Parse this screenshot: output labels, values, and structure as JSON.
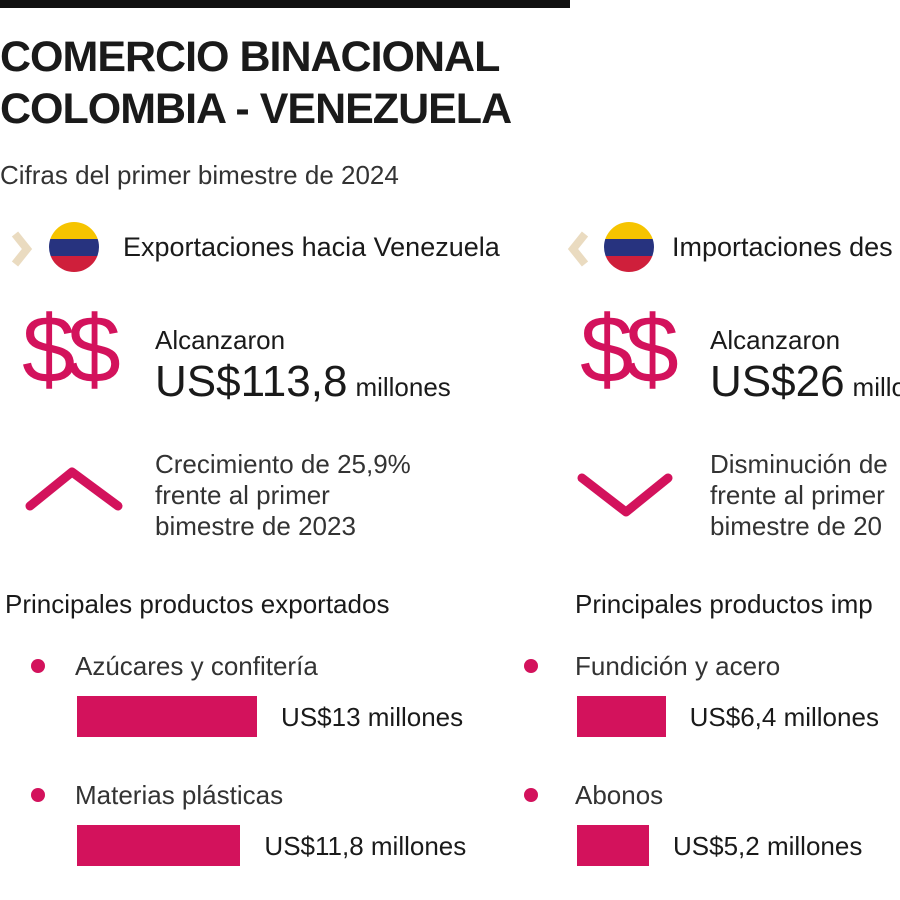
{
  "header": {
    "title_lines": [
      "COMERCIO BINACIONAL",
      "COLOMBIA - VENEZUELA"
    ],
    "subtitle": "Cifras del primer bimestre de 2024"
  },
  "columns": [
    {
      "heading": "Exportaciones hacia Venezuela",
      "icon": "$$",
      "reached_label": "Alcanzaron",
      "amount": "US$113,8",
      "amount_unit": "millones",
      "change_lines": [
        "Crecimiento de 25,9%",
        "frente al primer",
        "bimestre de 2023"
      ],
      "products_heading": "Principales productos exportados",
      "products": [
        {
          "name": "Azúcares y confitería",
          "value": 13,
          "value_label": "US$13 millones"
        },
        {
          "name": "Materias plásticas",
          "value": 11.8,
          "value_label": "US$11,8 millones"
        }
      ]
    },
    {
      "heading": "Importaciones des",
      "icon": "$$",
      "reached_label": "Alcanzaron",
      "amount": "US$26",
      "amount_unit": "millo",
      "change_lines": [
        "Disminución de",
        "frente al primer",
        "bimestre de 20"
      ],
      "products_heading": "Principales productos imp",
      "products": [
        {
          "name": "Fundición y acero",
          "value": 6.4,
          "value_label": "US$6,4 millones"
        },
        {
          "name": "Abonos",
          "value": 5.2,
          "value_label": "US$5,2 millones"
        }
      ]
    }
  ]
}
